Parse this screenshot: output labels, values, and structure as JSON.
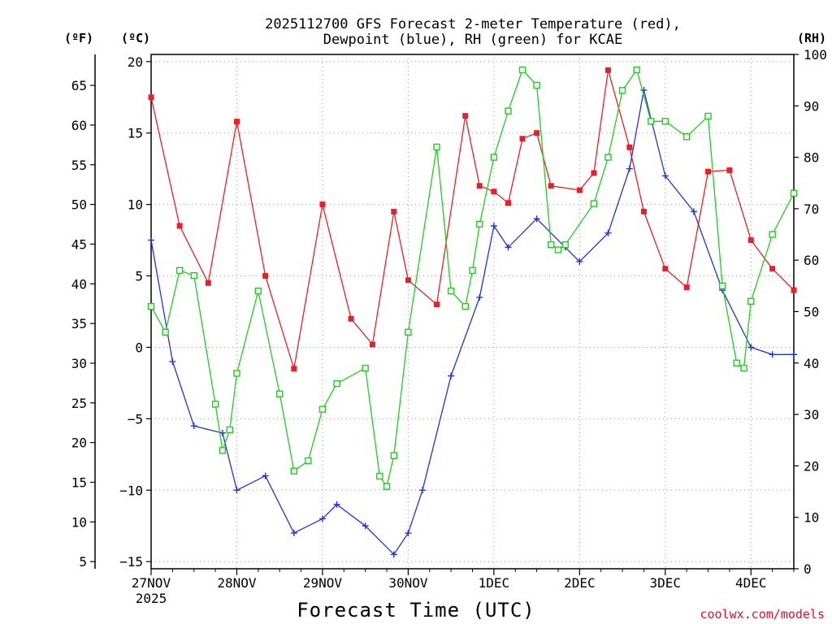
{
  "chart_data": {
    "type": "line",
    "title_line1": "2025112700 GFS Forecast 2-meter Temperature (red),",
    "title_line2": "Dewpoint (blue), RH (green) for KCAE",
    "xlabel": "Forecast Time (UTC)",
    "credit": "coolwx.com/models",
    "units": {
      "fahrenheit": "(ºF)",
      "celsius": "(ºC)",
      "rh": "(RH)"
    },
    "x_range_days": [
      0,
      7.5
    ],
    "x_ticks": [
      {
        "day": 0,
        "label": "27NOV"
      },
      {
        "day": 1,
        "label": "28NOV"
      },
      {
        "day": 2,
        "label": "29NOV"
      },
      {
        "day": 3,
        "label": "30NOV"
      },
      {
        "day": 4,
        "label": "1DEC"
      },
      {
        "day": 5,
        "label": "2DEC"
      },
      {
        "day": 6,
        "label": "3DEC"
      },
      {
        "day": 7,
        "label": "4DEC"
      }
    ],
    "x_year_label": "2025",
    "y_celsius_range": [
      -15.5,
      20.5
    ],
    "y_celsius_ticks": [
      {
        "value": -15,
        "label": "−15"
      },
      {
        "value": -10,
        "label": "−10"
      },
      {
        "value": -5,
        "label": "−5"
      },
      {
        "value": 0,
        "label": "0"
      },
      {
        "value": 5,
        "label": "5"
      },
      {
        "value": 10,
        "label": "10"
      },
      {
        "value": 15,
        "label": "15"
      },
      {
        "value": 20,
        "label": "20"
      }
    ],
    "y_fahrenheit_ticks": [
      5,
      10,
      15,
      20,
      25,
      30,
      35,
      40,
      45,
      50,
      55,
      60,
      65
    ],
    "y_rh_range": [
      0,
      100
    ],
    "y_rh_ticks": [
      0,
      10,
      20,
      30,
      40,
      50,
      60,
      70,
      80,
      90,
      100
    ],
    "series": [
      {
        "name": "2-meter Temperature",
        "unit": "C",
        "color": "#e8202a",
        "marker": "filled-square",
        "x": [
          0,
          0.333,
          0.667,
          1,
          1.333,
          1.667,
          2,
          2.333,
          2.583,
          2.833,
          3,
          3.333,
          3.667,
          3.833,
          4,
          4.167,
          4.333,
          4.5,
          4.667,
          5,
          5.167,
          5.333,
          5.583,
          5.75,
          6,
          6.25,
          6.5,
          6.75,
          7,
          7.25,
          7.5
        ],
        "values": [
          17.5,
          8.5,
          4.5,
          15.8,
          5.0,
          -1.5,
          10.0,
          2.0,
          0.2,
          9.5,
          4.7,
          3.0,
          16.2,
          11.3,
          10.9,
          10.1,
          14.6,
          15.0,
          11.3,
          11.0,
          12.2,
          19.4,
          14.0,
          9.5,
          5.5,
          4.2,
          12.3,
          12.4,
          7.5,
          5.5,
          4.0
        ]
      },
      {
        "name": "Dewpoint",
        "unit": "C",
        "color": "#2233dd",
        "marker": "plus",
        "x": [
          0,
          0.25,
          0.5,
          0.833,
          1,
          1.333,
          1.667,
          2,
          2.167,
          2.5,
          2.833,
          3,
          3.167,
          3.5,
          3.833,
          4,
          4.167,
          4.5,
          4.833,
          5,
          5.333,
          5.583,
          5.75,
          6,
          6.333,
          6.667,
          7,
          7.25,
          7.5
        ],
        "values": [
          7.5,
          -1.0,
          -5.5,
          -6.0,
          -10.0,
          -9.0,
          -13.0,
          -12.0,
          -11.0,
          -12.5,
          -14.5,
          -13.0,
          -10.0,
          -2.0,
          3.5,
          8.5,
          7.0,
          9.0,
          7.0,
          6.0,
          8.0,
          12.5,
          18.0,
          12.0,
          9.5,
          4.0,
          0.0,
          -0.5,
          -0.5
        ]
      },
      {
        "name": "Relative Humidity",
        "unit": "%",
        "color": "#22cc22",
        "marker": "open-square",
        "x": [
          0,
          0.167,
          0.333,
          0.5,
          0.75,
          0.833,
          0.917,
          1,
          1.25,
          1.5,
          1.667,
          1.833,
          2,
          2.167,
          2.5,
          2.667,
          2.75,
          2.833,
          3,
          3.333,
          3.5,
          3.667,
          3.75,
          3.833,
          4,
          4.167,
          4.333,
          4.5,
          4.667,
          4.75,
          4.833,
          5.167,
          5.333,
          5.5,
          5.667,
          5.833,
          6,
          6.25,
          6.5,
          6.667,
          6.833,
          6.917,
          7,
          7.25,
          7.5
        ],
        "values": [
          51,
          46,
          58,
          57,
          32,
          23,
          27,
          38,
          54,
          34,
          19,
          21,
          31,
          36,
          39,
          18,
          16,
          22,
          46,
          82,
          54,
          51,
          58,
          67,
          80,
          89,
          97,
          94,
          63,
          62,
          63,
          71,
          80,
          93,
          97,
          87,
          87,
          84,
          88,
          55,
          40,
          39,
          52,
          65,
          73
        ]
      }
    ]
  }
}
